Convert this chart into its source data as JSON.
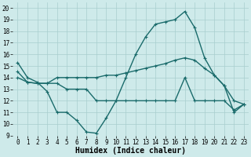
{
  "xlabel": "Humidex (Indice chaleur)",
  "xlim": [
    -0.5,
    23.5
  ],
  "ylim": [
    9,
    20.5
  ],
  "yticks": [
    9,
    10,
    11,
    12,
    13,
    14,
    15,
    16,
    17,
    18,
    19,
    20
  ],
  "xticks": [
    0,
    1,
    2,
    3,
    4,
    5,
    6,
    7,
    8,
    9,
    10,
    11,
    12,
    13,
    14,
    15,
    16,
    17,
    18,
    19,
    20,
    21,
    22,
    23
  ],
  "background_color": "#ceeaea",
  "grid_color": "#a8cece",
  "line_color": "#1a6b6b",
  "curve1_x": [
    0,
    1,
    2,
    3,
    4,
    5,
    6,
    7,
    8,
    9,
    10,
    11,
    12,
    13,
    14,
    15,
    16,
    17,
    18,
    19,
    20,
    21,
    22,
    23
  ],
  "curve1_y": [
    15.3,
    14.0,
    13.6,
    12.8,
    11.0,
    11.0,
    10.3,
    9.3,
    9.2,
    10.5,
    12.0,
    14.0,
    16.0,
    17.5,
    18.6,
    18.8,
    19.0,
    19.7,
    18.3,
    15.7,
    14.2,
    13.3,
    11.0,
    11.7
  ],
  "curve2_x": [
    0,
    1,
    2,
    3,
    4,
    5,
    6,
    7,
    8,
    9,
    10,
    11,
    12,
    13,
    14,
    15,
    16,
    17,
    18,
    19,
    20,
    21,
    22,
    23
  ],
  "curve2_y": [
    14.0,
    13.6,
    13.5,
    13.5,
    14.0,
    14.0,
    14.0,
    14.0,
    14.0,
    14.2,
    14.2,
    14.4,
    14.6,
    14.8,
    15.0,
    15.2,
    15.5,
    15.7,
    15.5,
    14.8,
    14.2,
    13.3,
    12.0,
    11.7
  ],
  "curve3_x": [
    0,
    1,
    2,
    3,
    4,
    5,
    6,
    7,
    8,
    9,
    10,
    11,
    12,
    13,
    14,
    15,
    16,
    17,
    18,
    19,
    20,
    21,
    22,
    23
  ],
  "curve3_y": [
    14.5,
    13.6,
    13.5,
    13.5,
    13.5,
    13.0,
    13.0,
    13.0,
    12.0,
    12.0,
    12.0,
    12.0,
    12.0,
    12.0,
    12.0,
    12.0,
    12.0,
    14.0,
    12.0,
    12.0,
    12.0,
    12.0,
    11.2,
    11.7
  ],
  "marker": "+",
  "markersize": 3,
  "linewidth": 1.0,
  "tick_fontsize": 5.5,
  "label_fontsize": 7
}
